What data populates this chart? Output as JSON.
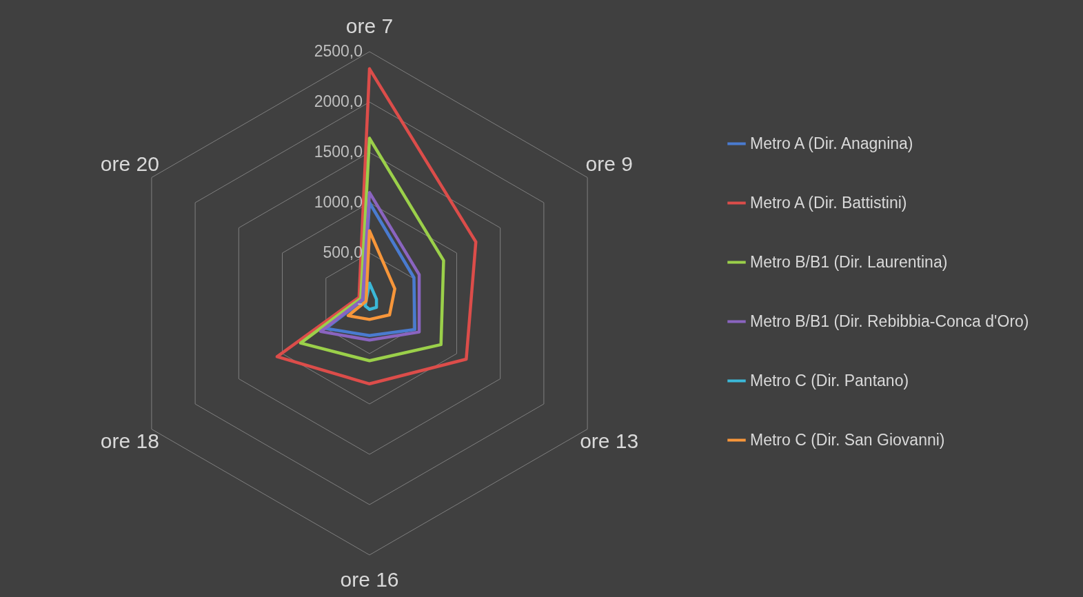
{
  "chart_data": {
    "type": "radar",
    "categories": [
      "ore 7",
      "ore 9",
      "ore 13",
      "ore 16",
      "ore 18",
      "ore 20"
    ],
    "series": [
      {
        "name": "Metro A (Dir. Anagnina)",
        "color": "#4a7bd0",
        "values": [
          1000,
          510,
          520,
          320,
          500,
          70
        ]
      },
      {
        "name": "Metro A (Dir. Battistini)",
        "color": "#dc4d4a",
        "values": [
          2330,
          1220,
          1110,
          800,
          1060,
          120
        ]
      },
      {
        "name": "Metro B/B1 (Dir. Laurentina)",
        "color": "#9bd04a",
        "values": [
          1640,
          850,
          820,
          570,
          790,
          100
        ]
      },
      {
        "name": "Metro B/B1 (Dir. Rebibbia-Conca d'Oro)",
        "color": "#8a64c0",
        "values": [
          1100,
          570,
          570,
          365,
          560,
          80
        ]
      },
      {
        "name": "Metro C (Dir. Pantano)",
        "color": "#3bb8d8",
        "values": [
          200,
          80,
          80,
          60,
          50,
          40
        ]
      },
      {
        "name": "Metro C (Dir. San Giovanni)",
        "color": "#f7963a",
        "values": [
          720,
          290,
          230,
          160,
          245,
          40
        ]
      }
    ],
    "ylim": [
      0,
      2500
    ],
    "yticks": [
      {
        "value": 0,
        "label": "-"
      },
      {
        "value": 500,
        "label": "500,0"
      },
      {
        "value": 1000,
        "label": "1000,0"
      },
      {
        "value": 1500,
        "label": "1500,0"
      },
      {
        "value": 2000,
        "label": "2000,0"
      },
      {
        "value": 2500,
        "label": "2500,0"
      }
    ],
    "grid": true,
    "legend": "right"
  }
}
